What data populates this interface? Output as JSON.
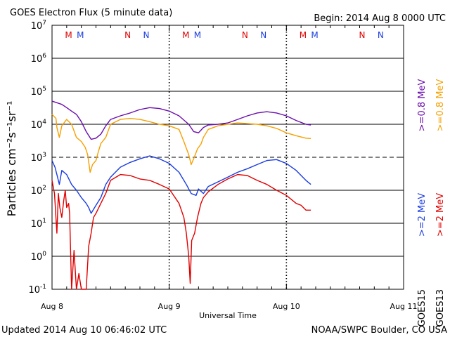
{
  "title": "GOES Electron Flux (5 minute data)",
  "begin_label": "Begin: 2014 Aug 8 0000 UTC",
  "footer_left": "Updated 2014 Aug 10 06:46:02 UTC",
  "footer_right": "NOAA/SWPC Boulder, CO USA",
  "chart_data": {
    "type": "line",
    "title": "GOES Electron Flux (5 minute data)",
    "xlabel": "Universal Time",
    "ylabel": "Particles cm⁻²s⁻¹sr⁻¹",
    "y_scale": "log",
    "ylim": [
      0.1,
      10000000
    ],
    "y_ticks": [
      {
        "value": 0.1,
        "base": "10",
        "exp": "-1"
      },
      {
        "value": 1,
        "base": "10",
        "exp": "0"
      },
      {
        "value": 10,
        "base": "10",
        "exp": "1"
      },
      {
        "value": 100,
        "base": "10",
        "exp": "2"
      },
      {
        "value": 1000,
        "base": "10",
        "exp": "3"
      },
      {
        "value": 10000,
        "base": "10",
        "exp": "4"
      },
      {
        "value": 100000,
        "base": "10",
        "exp": "5"
      },
      {
        "value": 1000000,
        "base": "10",
        "exp": "6"
      },
      {
        "value": 10000000,
        "base": "10",
        "exp": "7"
      }
    ],
    "x_unit": "hours since 2014 Aug 8 00:00 UTC",
    "xlim": [
      0,
      72
    ],
    "x_ticks": [
      {
        "value": 0,
        "label": "Aug 8"
      },
      {
        "value": 24,
        "label": "Aug 9"
      },
      {
        "value": 48,
        "label": "Aug 10"
      },
      {
        "value": 72,
        "label": "Aug 11"
      }
    ],
    "threshold_line": 1000,
    "grid": "horizontal lines at each decade; dotted vertical lines at day boundaries",
    "legend_placement": "right, vertical",
    "legend": [
      {
        "satellite": "GOES13",
        "label": ">=0.8 MeV",
        "color": "#f5a000"
      },
      {
        "satellite": "GOES15",
        "label": ">=0.8 MeV",
        "color": "#6a0dad"
      },
      {
        "satellite": "GOES13",
        "label": ">=2 MeV",
        "color": "#e00000"
      },
      {
        "satellite": "GOES15",
        "label": ">=2 MeV",
        "color": "#1a3ce0"
      }
    ],
    "legend_sat_labels": [
      "GOES13",
      "GOES15"
    ],
    "legend_energy": [
      ">=0.8 MeV",
      ">=0.8 MeV",
      ">=2 MeV",
      ">=2 MeV"
    ],
    "markers": [
      {
        "x": 3.4,
        "label": "M",
        "color": "#e00000"
      },
      {
        "x": 5.8,
        "label": "M",
        "color": "#1a3ce0"
      },
      {
        "x": 15.5,
        "label": "N",
        "color": "#e00000"
      },
      {
        "x": 19.3,
        "label": "N",
        "color": "#1a3ce0"
      },
      {
        "x": 27.4,
        "label": "M",
        "color": "#e00000"
      },
      {
        "x": 29.8,
        "label": "M",
        "color": "#1a3ce0"
      },
      {
        "x": 39.5,
        "label": "N",
        "color": "#e00000"
      },
      {
        "x": 43.3,
        "label": "N",
        "color": "#1a3ce0"
      },
      {
        "x": 51.4,
        "label": "M",
        "color": "#e00000"
      },
      {
        "x": 53.8,
        "label": "M",
        "color": "#1a3ce0"
      },
      {
        "x": 63.5,
        "label": "N",
        "color": "#e00000"
      },
      {
        "x": 67.3,
        "label": "N",
        "color": "#1a3ce0"
      }
    ],
    "series": [
      {
        "name": "GOES15 >=0.8 MeV",
        "color": "#6a0dad",
        "points": [
          [
            0,
            50000
          ],
          [
            1,
            45000
          ],
          [
            2,
            40000
          ],
          [
            3,
            32000
          ],
          [
            4,
            25000
          ],
          [
            5,
            20000
          ],
          [
            6,
            12000
          ],
          [
            7,
            6000
          ],
          [
            8,
            3500
          ],
          [
            9,
            3800
          ],
          [
            10,
            5000
          ],
          [
            11,
            9000
          ],
          [
            12,
            14000
          ],
          [
            14,
            18000
          ],
          [
            16,
            22000
          ],
          [
            18,
            28000
          ],
          [
            20,
            32000
          ],
          [
            22,
            30000
          ],
          [
            24,
            25000
          ],
          [
            26,
            18000
          ],
          [
            28,
            10000
          ],
          [
            29,
            6000
          ],
          [
            30,
            5500
          ],
          [
            31,
            8000
          ],
          [
            32,
            9500
          ],
          [
            34,
            10000
          ],
          [
            36,
            11000
          ],
          [
            38,
            14000
          ],
          [
            40,
            18000
          ],
          [
            42,
            22000
          ],
          [
            44,
            24000
          ],
          [
            46,
            22000
          ],
          [
            48,
            18000
          ],
          [
            50,
            13000
          ],
          [
            52,
            10000
          ],
          [
            53,
            9500
          ]
        ]
      },
      {
        "name": "GOES13 >=0.8 MeV",
        "color": "#f5a000",
        "points": [
          [
            0,
            20000
          ],
          [
            0.8,
            15000
          ],
          [
            1,
            8000
          ],
          [
            1.5,
            4000
          ],
          [
            2,
            9000
          ],
          [
            3,
            14000
          ],
          [
            4,
            10000
          ],
          [
            5,
            4000
          ],
          [
            6,
            3000
          ],
          [
            6.8,
            2000
          ],
          [
            7.3,
            1200
          ],
          [
            7.8,
            350
          ],
          [
            8.3,
            600
          ],
          [
            9,
            800
          ],
          [
            9.5,
            1500
          ],
          [
            10,
            2600
          ],
          [
            11,
            4000
          ],
          [
            12,
            10000
          ],
          [
            14,
            14000
          ],
          [
            16,
            15000
          ],
          [
            18,
            14000
          ],
          [
            20,
            12000
          ],
          [
            22,
            10000
          ],
          [
            24,
            9000
          ],
          [
            26,
            7000
          ],
          [
            27,
            3000
          ],
          [
            28,
            1200
          ],
          [
            28.5,
            600
          ],
          [
            29,
            900
          ],
          [
            29.8,
            1800
          ],
          [
            30.5,
            2500
          ],
          [
            31,
            4000
          ],
          [
            32,
            7000
          ],
          [
            34,
            9000
          ],
          [
            36,
            10000
          ],
          [
            38,
            11000
          ],
          [
            40,
            10500
          ],
          [
            42,
            10000
          ],
          [
            44,
            9000
          ],
          [
            46,
            7500
          ],
          [
            48,
            5500
          ],
          [
            50,
            4500
          ],
          [
            52,
            3800
          ],
          [
            53,
            3700
          ]
        ]
      },
      {
        "name": "GOES15 >=2 MeV",
        "color": "#1a3ce0",
        "points": [
          [
            0,
            800
          ],
          [
            0.6,
            500
          ],
          [
            1,
            300
          ],
          [
            1.5,
            150
          ],
          [
            2,
            400
          ],
          [
            3,
            300
          ],
          [
            4,
            150
          ],
          [
            5,
            100
          ],
          [
            6,
            60
          ],
          [
            7,
            40
          ],
          [
            7.5,
            30
          ],
          [
            8,
            20
          ],
          [
            9,
            35
          ],
          [
            10,
            60
          ],
          [
            11,
            150
          ],
          [
            12,
            250
          ],
          [
            14,
            500
          ],
          [
            16,
            700
          ],
          [
            18,
            900
          ],
          [
            20,
            1100
          ],
          [
            22,
            900
          ],
          [
            24,
            650
          ],
          [
            26,
            350
          ],
          [
            27.5,
            150
          ],
          [
            28.5,
            80
          ],
          [
            29.5,
            70
          ],
          [
            30,
            110
          ],
          [
            31,
            80
          ],
          [
            32,
            130
          ],
          [
            34,
            180
          ],
          [
            36,
            250
          ],
          [
            38,
            350
          ],
          [
            40,
            450
          ],
          [
            42,
            600
          ],
          [
            44,
            800
          ],
          [
            46,
            850
          ],
          [
            48,
            650
          ],
          [
            50,
            400
          ],
          [
            52,
            200
          ],
          [
            53,
            150
          ]
        ]
      },
      {
        "name": "GOES13 >=2 MeV",
        "color": "#e00000",
        "points": [
          [
            0,
            200
          ],
          [
            0.5,
            80
          ],
          [
            1,
            5
          ],
          [
            1.3,
            80
          ],
          [
            1.6,
            30
          ],
          [
            2,
            15
          ],
          [
            2.4,
            50
          ],
          [
            2.7,
            100
          ],
          [
            3,
            30
          ],
          [
            3.4,
            40
          ],
          [
            3.6,
            20
          ],
          [
            4,
            0.1
          ],
          [
            4.5,
            1.5
          ],
          [
            5,
            0.1
          ],
          [
            5.5,
            0.3
          ],
          [
            6,
            0.1
          ],
          [
            6.5,
            0.1
          ],
          [
            7,
            0.1
          ],
          [
            7.5,
            2
          ],
          [
            8,
            5
          ],
          [
            8.5,
            15
          ],
          [
            9,
            20
          ],
          [
            10,
            40
          ],
          [
            11,
            80
          ],
          [
            12,
            200
          ],
          [
            14,
            300
          ],
          [
            16,
            280
          ],
          [
            18,
            220
          ],
          [
            20,
            200
          ],
          [
            22,
            150
          ],
          [
            24,
            110
          ],
          [
            26,
            40
          ],
          [
            27,
            15
          ],
          [
            27.5,
            5
          ],
          [
            28,
            1
          ],
          [
            28.3,
            0.15
          ],
          [
            28.6,
            3
          ],
          [
            29.2,
            5
          ],
          [
            29.8,
            15
          ],
          [
            30.5,
            40
          ],
          [
            31,
            60
          ],
          [
            32,
            90
          ],
          [
            34,
            150
          ],
          [
            36,
            220
          ],
          [
            38,
            300
          ],
          [
            40,
            280
          ],
          [
            42,
            200
          ],
          [
            44,
            150
          ],
          [
            46,
            100
          ],
          [
            48,
            70
          ],
          [
            50,
            40
          ],
          [
            51,
            35
          ],
          [
            52,
            25
          ],
          [
            53,
            25
          ]
        ]
      }
    ]
  }
}
